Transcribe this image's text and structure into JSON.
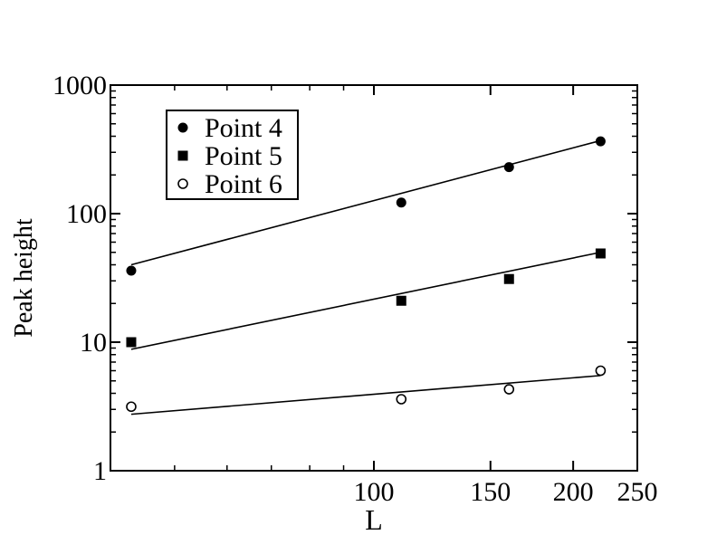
{
  "chart_data": {
    "type": "scatter",
    "scale": "log-log",
    "xlabel": "L",
    "ylabel": "Peak height",
    "xlim": [
      40,
      250
    ],
    "ylim": [
      1,
      1000
    ],
    "x_ticks": [
      100,
      150,
      200,
      250
    ],
    "y_ticks": [
      1,
      10,
      100,
      1000
    ],
    "x_tick_labels": [
      "100",
      "150",
      "200",
      "250"
    ],
    "y_tick_labels": [
      "1",
      "10",
      "100",
      "1000"
    ],
    "legend_position": "top-left",
    "grid": false,
    "series": [
      {
        "name": "Point 4",
        "marker": "filled-circle",
        "x": [
          43,
          110,
          160,
          220
        ],
        "y": [
          36,
          122,
          230,
          365
        ],
        "fit": {
          "x": [
            43,
            220
          ],
          "y": [
            40,
            370
          ]
        }
      },
      {
        "name": "Point 5",
        "marker": "filled-square",
        "x": [
          43,
          110,
          160,
          220
        ],
        "y": [
          10,
          21,
          31,
          49
        ],
        "fit": {
          "x": [
            43,
            220
          ],
          "y": [
            8.8,
            50
          ]
        }
      },
      {
        "name": "Point 6",
        "marker": "open-circle",
        "x": [
          43,
          110,
          160,
          220
        ],
        "y": [
          3.15,
          3.6,
          4.3,
          6.0
        ],
        "fit": {
          "x": [
            43,
            220
          ],
          "y": [
            2.75,
            5.5
          ]
        }
      }
    ]
  }
}
